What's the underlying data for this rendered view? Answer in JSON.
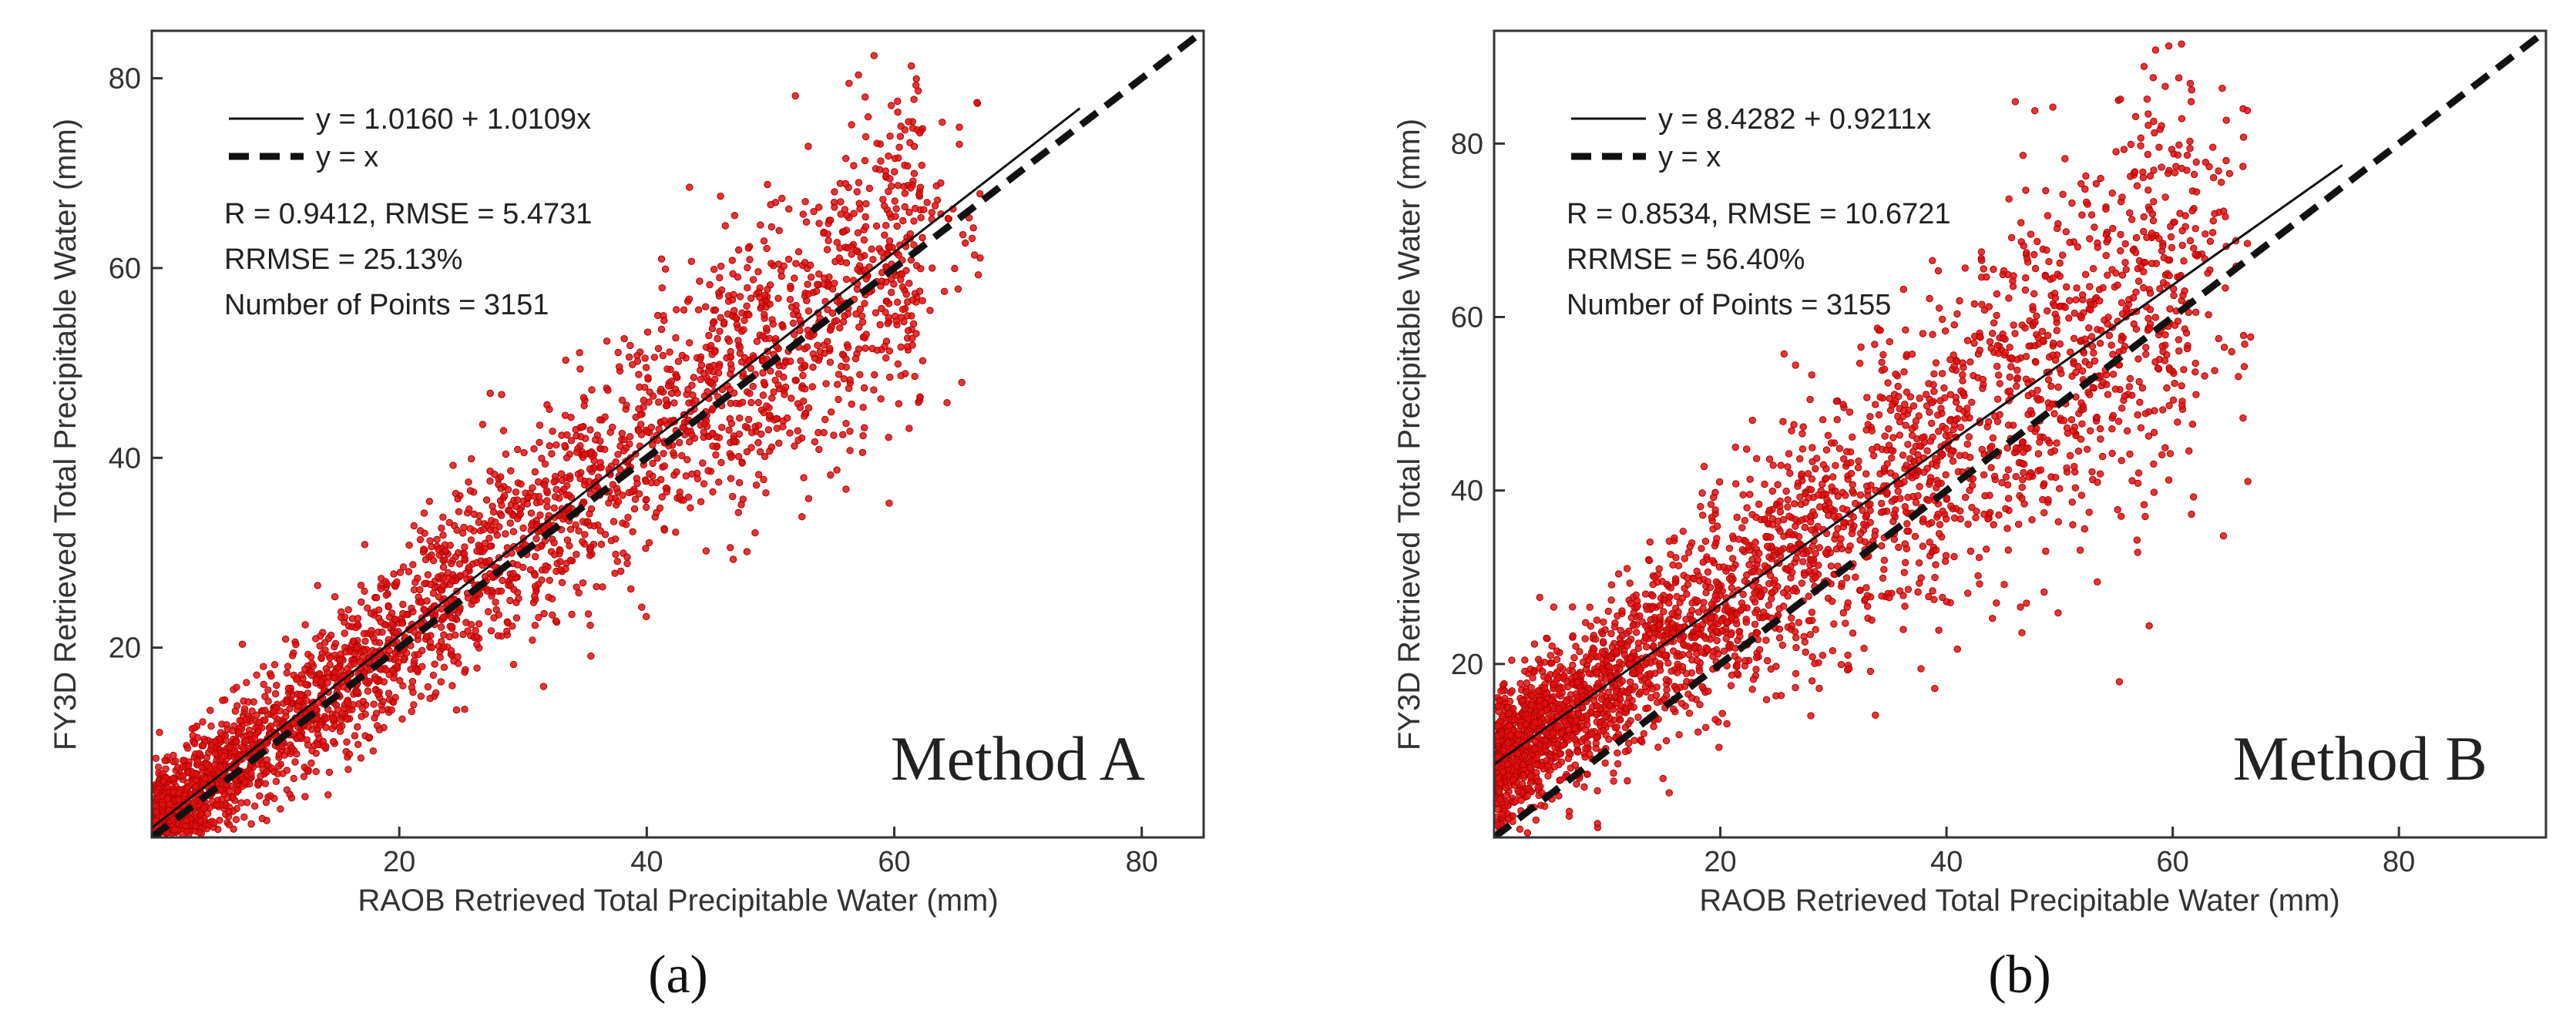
{
  "chart_data": [
    {
      "type": "scatter",
      "panel_label": "(a)",
      "method": "Method A",
      "xlabel": "RAOB Retrieved Total Precipitable Water (mm)",
      "ylabel": "FY3D Retrieved Total Precipitable Water (mm)",
      "xlim": [
        0,
        85
      ],
      "ylim": [
        0,
        85
      ],
      "xticks": [
        "20",
        "40",
        "60",
        "80"
      ],
      "yticks": [
        "20",
        "40",
        "60",
        "80"
      ],
      "legend": {
        "fit_label": "y = 1.0160 + 1.0109x",
        "identity_label": "y = x"
      },
      "stats": {
        "r_rmse": "R = 0.9412, RMSE = 5.4731",
        "rrmse": "RRMSE = 25.13%",
        "points": "Number of Points = 3151"
      },
      "fit": {
        "intercept": 1.016,
        "slope": 1.0109,
        "x_range": [
          0,
          75
        ]
      },
      "identity": {
        "x_range": [
          0,
          85
        ]
      },
      "n_points": 3151,
      "scatter_model": {
        "intercept": 1.016,
        "slope": 1.0109,
        "noise_sd": 5.47,
        "seed": 11
      },
      "color": "#e01010"
    },
    {
      "type": "scatter",
      "panel_label": "(b)",
      "method": "Method B",
      "xlabel": "RAOB Retrieved Total Precipitable Water (mm)",
      "ylabel": "FY3D Retrieved Total Precipitable Water (mm)",
      "xlim": [
        0,
        93
      ],
      "ylim": [
        0,
        93
      ],
      "xticks": [
        "20",
        "40",
        "60",
        "80"
      ],
      "yticks": [
        "20",
        "40",
        "60",
        "80"
      ],
      "legend": {
        "fit_label": "y = 8.4282 + 0.9211x",
        "identity_label": "y = x"
      },
      "stats": {
        "r_rmse": "R = 0.8534, RMSE = 10.6721",
        "rrmse": "RRMSE = 56.40%",
        "points": "Number of Points = 3155"
      },
      "fit": {
        "intercept": 8.4282,
        "slope": 0.9211,
        "x_range": [
          0,
          75
        ]
      },
      "identity": {
        "x_range": [
          0,
          93
        ]
      },
      "n_points": 3155,
      "scatter_model": {
        "intercept": 8.4282,
        "slope": 0.9211,
        "noise_sd": 7.8,
        "seed": 29
      },
      "color": "#e01010"
    }
  ]
}
